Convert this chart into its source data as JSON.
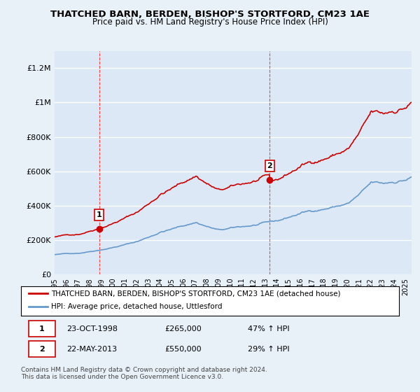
{
  "title": "THATCHED BARN, BERDEN, BISHOP'S STORTFORD, CM23 1AE",
  "subtitle": "Price paid vs. HM Land Registry's House Price Index (HPI)",
  "bg_color": "#e8f0f8",
  "plot_bg_color": "#dce8f5",
  "grid_color": "#ffffff",
  "red_line_color": "#cc0000",
  "blue_line_color": "#6699cc",
  "marker_color": "#cc0000",
  "dashed_line_color": "#ff4444",
  "ylim": [
    0,
    1300000
  ],
  "yticks": [
    0,
    200000,
    400000,
    600000,
    800000,
    1000000,
    1200000
  ],
  "ytick_labels": [
    "£0",
    "£200K",
    "£400K",
    "£600K",
    "£800K",
    "£1M",
    "£1.2M"
  ],
  "xlim_start": 1995.0,
  "xlim_end": 2025.5,
  "purchase1_x": 1998.81,
  "purchase1_y": 265000,
  "purchase2_x": 2013.38,
  "purchase2_y": 550000,
  "purchase1_label": "1",
  "purchase2_label": "2",
  "legend_line1": "THATCHED BARN, BERDEN, BISHOP'S STORTFORD, CM23 1AE (detached house)",
  "legend_line2": "HPI: Average price, detached house, Uttlesford",
  "table_row1": [
    "1",
    "23-OCT-1998",
    "£265,000",
    "47% ↑ HPI"
  ],
  "table_row2": [
    "2",
    "22-MAY-2013",
    "£550,000",
    "29% ↑ HPI"
  ],
  "footnote": "Contains HM Land Registry data © Crown copyright and database right 2024.\nThis data is licensed under the Open Government Licence v3.0.",
  "xtick_years": [
    1995,
    1996,
    1997,
    1998,
    1999,
    2000,
    2001,
    2002,
    2003,
    2004,
    2005,
    2006,
    2007,
    2008,
    2009,
    2010,
    2011,
    2012,
    2013,
    2014,
    2015,
    2016,
    2017,
    2018,
    2019,
    2020,
    2021,
    2022,
    2023,
    2024,
    2025
  ]
}
